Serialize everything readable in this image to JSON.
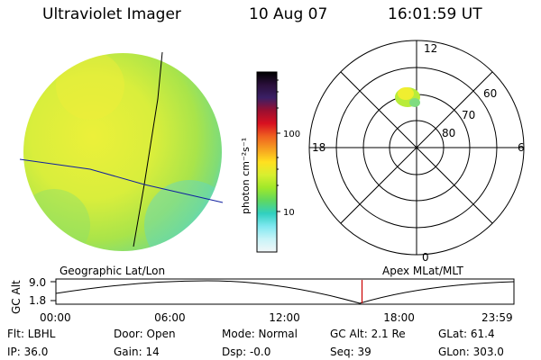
{
  "header": {
    "instrument": "Ultraviolet Imager",
    "date": "10 Aug 07",
    "time": "16:01:59 UT"
  },
  "colorbar": {
    "label": "photon cm⁻²s⁻¹",
    "tick_labels": [
      "100",
      "10"
    ],
    "colors": [
      "#000000",
      "#2a0f3a",
      "#3a1f66",
      "#9a0f30",
      "#d81020",
      "#ef6020",
      "#f6a020",
      "#ffe020",
      "#d8ef30",
      "#a0e82a",
      "#5fd860",
      "#30d0c0",
      "#80e8f0",
      "#c8f4f8",
      "#f2f6f8"
    ]
  },
  "left_panel": {
    "label": "Geographic Lat/Lon"
  },
  "right_panel": {
    "label": "Apex  MLat/MLT",
    "mlt_labels": [
      "12",
      "18",
      "6",
      "0"
    ],
    "mlat_labels": [
      "60",
      "70",
      "80"
    ]
  },
  "timeline": {
    "y_label": "GC Alt",
    "y_ticks": [
      "9.0",
      "1.8"
    ],
    "x_ticks": [
      "00:00",
      "06:00",
      "12:00",
      "18:00",
      "23:59"
    ],
    "marker_time_hours": 16.03,
    "marker_color": "#cc0000"
  },
  "info": {
    "flt": "Flt: LBHL",
    "door": "Door: Open",
    "mode": "Mode: Normal",
    "gc_alt": "GC Alt: 2.1 Re",
    "glat": "GLat: 61.4",
    "ip": "IP: 36.0",
    "gain": "Gain: 14",
    "dsp": "Dsp:   -0.0",
    "seq": "Seq: 39",
    "glon": "GLon: 303.0"
  }
}
